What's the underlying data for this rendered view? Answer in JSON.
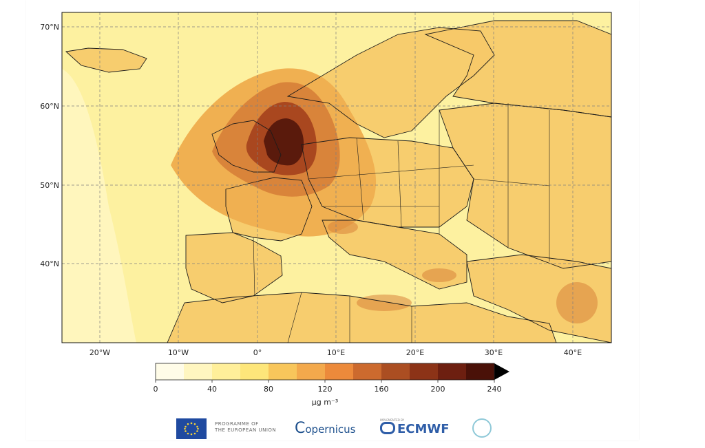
{
  "map": {
    "latitude_ticks": [
      "70°N",
      "60°N",
      "50°N",
      "40°N"
    ],
    "longitude_ticks": [
      "20°W",
      "10°W",
      "0°",
      "10°E",
      "20°E",
      "30°E",
      "40°E"
    ],
    "colorbar": {
      "tick_labels": [
        "0",
        "40",
        "80",
        "120",
        "160",
        "200",
        "240"
      ],
      "unit": "μg m⁻³",
      "colors": [
        "#fffce8",
        "#fff6c0",
        "#ffef9a",
        "#fde67a",
        "#f8c65b",
        "#f3a94c",
        "#ec8a3b",
        "#cc6a2e",
        "#ab4e22",
        "#8c3317",
        "#6d1f10",
        "#4a1108"
      ]
    },
    "field_colors": {
      "ocean_base": "#fdf1a0",
      "land_base": "#f6c968",
      "plume_low": "#f0b051",
      "plume_mid": "#d9843a",
      "plume_high": "#a9471f",
      "plume_peak": "#5a1a0c",
      "coastline": "#1b1b1b",
      "grid": "#7f7f7f"
    }
  },
  "footer": {
    "eu_line1": "PROGRAMME OF",
    "eu_line2": "THE EUROPEAN UNION",
    "copernicus": "opernicus",
    "copernicus_c": "C",
    "ecmwf_small": "IMPLEMENTED BY",
    "ecmwf": "ECMWF"
  }
}
